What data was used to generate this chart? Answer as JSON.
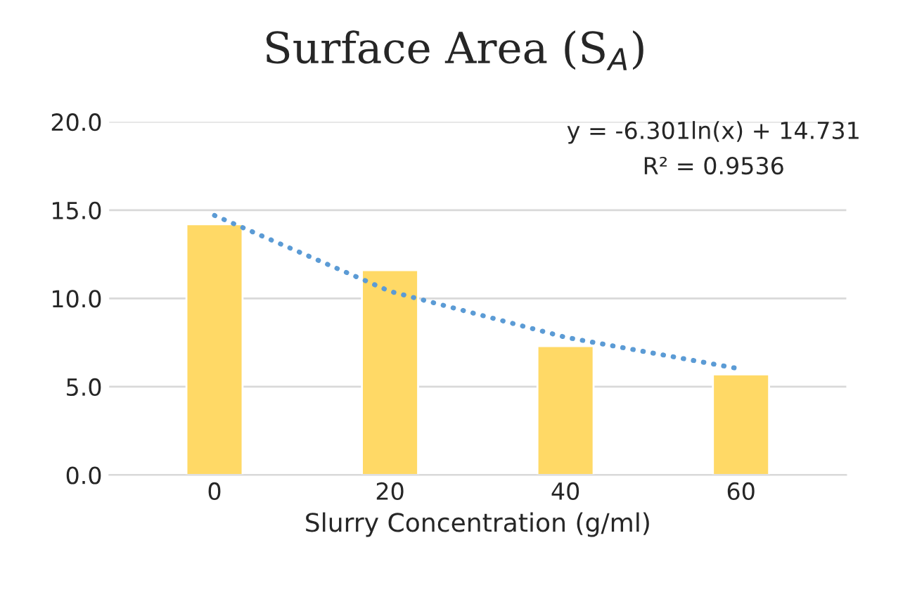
{
  "chart_data": {
    "type": "bar",
    "title": "Surface Area (S$_{A}$)",
    "xlabel": "Slurry Concentration (g/ml)",
    "categories": [
      "0",
      "20",
      "40",
      "60"
    ],
    "series": [
      {
        "color": "#ffd966",
        "values": [
          14.2,
          11.6,
          7.3,
          5.7
        ]
      },
      {
        "type": "line",
        "color": "#5b9bd5",
        "line_style": "dotted",
        "values": [
          14.7,
          10.4,
          7.8,
          6.0
        ]
      }
    ],
    "annotations": [
      "y = -6.301ln(x) + 14.731",
      "R² = 0.9536"
    ],
    "ylim": [
      0,
      20
    ],
    "yticks": [
      {
        "value": 0,
        "label": "0.0"
      },
      {
        "value": 5,
        "label": "5.0"
      },
      {
        "value": 10,
        "label": "10.0"
      },
      {
        "value": 15,
        "label": "15.0"
      },
      {
        "value": 20,
        "label": "20.0"
      }
    ],
    "grid": "y",
    "legend": false
  }
}
